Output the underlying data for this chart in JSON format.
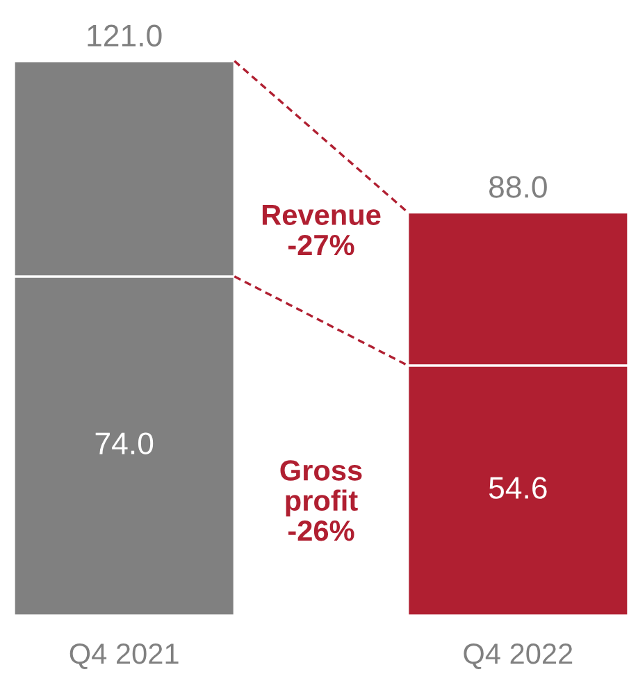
{
  "chart_data": {
    "type": "bar",
    "stacked": true,
    "categories": [
      "Q4 2021",
      "Q4 2022"
    ],
    "series": [
      {
        "colors": [
          "#808080",
          "#b01f31"
        ],
        "values": [
          74.0,
          54.6
        ],
        "value_labels": [
          "74.0",
          "54.6"
        ]
      },
      {
        "colors": [
          "#808080",
          "#b01f31"
        ],
        "values": [
          47.0,
          33.4
        ]
      }
    ],
    "totals": [
      "121.0",
      "88.0"
    ],
    "annotations": [
      "Revenue\n-27%",
      "Gross\nprofit\n-26%"
    ],
    "grid": false,
    "legend": false
  }
}
